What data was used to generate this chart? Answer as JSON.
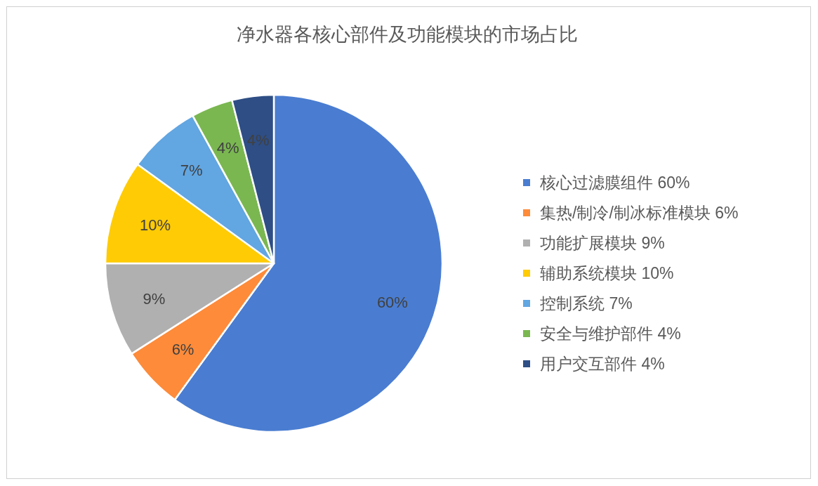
{
  "chart_data": {
    "type": "pie",
    "title": "净水器各核心部件及功能模块的市场占比",
    "categories": [
      "核心过滤膜组件 60%",
      "集热/制冷/制冰标准模块 6%",
      "功能扩展模块 9%",
      "辅助系统模块 10%",
      "控制系统 7%",
      "安全与维护部件 4%",
      "用户交互部件 4%"
    ],
    "values": [
      60,
      6,
      9,
      10,
      7,
      4,
      4
    ],
    "colors": [
      "#4a7dd1",
      "#fd8b3a",
      "#b0b0b0",
      "#fecb05",
      "#62a6e2",
      "#7ab751",
      "#2e4e85"
    ],
    "value_labels": [
      "60%",
      "6%",
      "9%",
      "10%",
      "7%",
      "4%",
      "4%"
    ],
    "legend": "right"
  }
}
